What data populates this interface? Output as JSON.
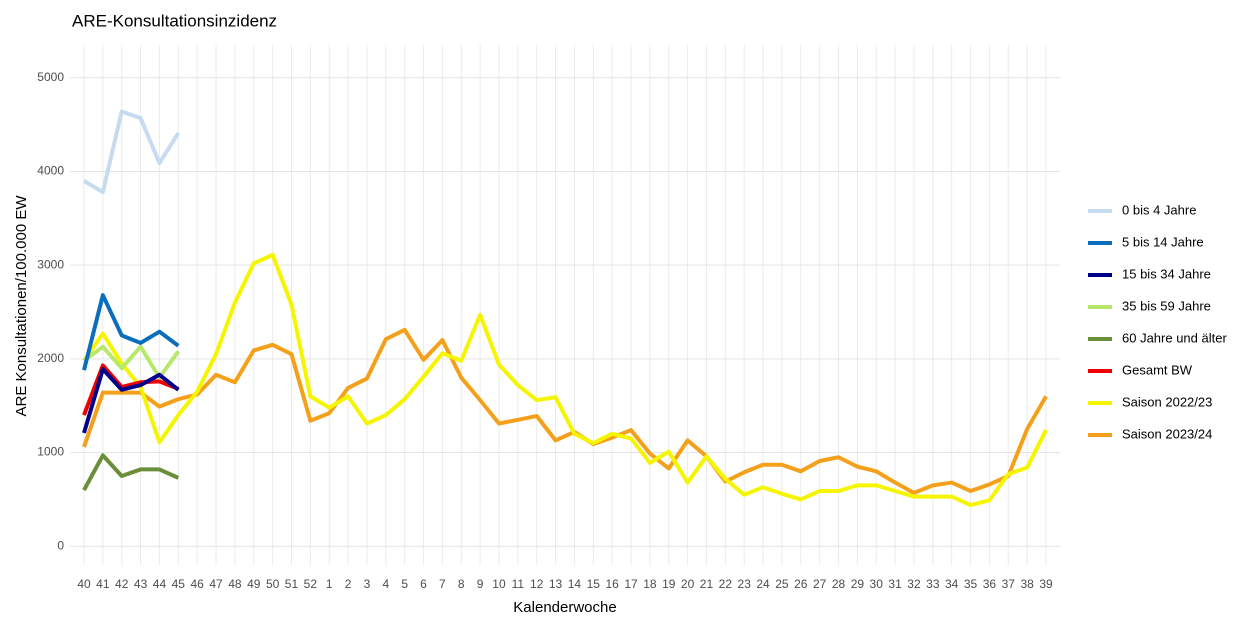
{
  "chart_data": {
    "type": "line",
    "title": "ARE-Konsultationsinzidenz",
    "x_label": "Kalenderwoche",
    "y_label": "ARE Konsultationen/100.000 EW",
    "categories": [
      "40",
      "41",
      "42",
      "43",
      "44",
      "45",
      "46",
      "47",
      "48",
      "49",
      "50",
      "51",
      "52",
      "1",
      "2",
      "3",
      "4",
      "5",
      "6",
      "7",
      "8",
      "9",
      "10",
      "11",
      "12",
      "13",
      "14",
      "15",
      "16",
      "17",
      "18",
      "19",
      "20",
      "21",
      "22",
      "23",
      "24",
      "25",
      "26",
      "27",
      "28",
      "29",
      "30",
      "31",
      "32",
      "33",
      "34",
      "35",
      "36",
      "37",
      "38",
      "39"
    ],
    "ylim": [
      -200,
      5350
    ],
    "yticks": [
      0,
      1000,
      2000,
      3000,
      4000,
      5000
    ],
    "grid": true,
    "legend": "right",
    "series": [
      {
        "name": "0 bis 4 Jahre",
        "color": "#c6dbef",
        "values": [
          3900,
          3780,
          4640,
          4570,
          4090,
          4410,
          null,
          null,
          null,
          null,
          null,
          null,
          null,
          null,
          null,
          null,
          null,
          null,
          null,
          null,
          null,
          null,
          null,
          null,
          null,
          null,
          null,
          null,
          null,
          null,
          null,
          null,
          null,
          null,
          null,
          null,
          null,
          null,
          null,
          null,
          null,
          null,
          null,
          null,
          null,
          null,
          null,
          null,
          null,
          null,
          null,
          null
        ]
      },
      {
        "name": "5 bis 14 Jahre",
        "color": "#0a6ebd",
        "values": [
          1880,
          2680,
          2250,
          2170,
          2290,
          2140,
          null,
          null,
          null,
          null,
          null,
          null,
          null,
          null,
          null,
          null,
          null,
          null,
          null,
          null,
          null,
          null,
          null,
          null,
          null,
          null,
          null,
          null,
          null,
          null,
          null,
          null,
          null,
          null,
          null,
          null,
          null,
          null,
          null,
          null,
          null,
          null,
          null,
          null,
          null,
          null,
          null,
          null,
          null,
          null,
          null,
          null
        ]
      },
      {
        "name": "15 bis 34 Jahre",
        "color": "#00008b",
        "values": [
          1210,
          1890,
          1670,
          1720,
          1830,
          1670,
          null,
          null,
          null,
          null,
          null,
          null,
          null,
          null,
          null,
          null,
          null,
          null,
          null,
          null,
          null,
          null,
          null,
          null,
          null,
          null,
          null,
          null,
          null,
          null,
          null,
          null,
          null,
          null,
          null,
          null,
          null,
          null,
          null,
          null,
          null,
          null,
          null,
          null,
          null,
          null,
          null,
          null,
          null,
          null,
          null,
          null
        ]
      },
      {
        "name": "35 bis 59 Jahre",
        "color": "#b8e86a",
        "values": [
          1980,
          2130,
          1900,
          2130,
          1800,
          2080,
          null,
          null,
          null,
          null,
          null,
          null,
          null,
          null,
          null,
          null,
          null,
          null,
          null,
          null,
          null,
          null,
          null,
          null,
          null,
          null,
          null,
          null,
          null,
          null,
          null,
          null,
          null,
          null,
          null,
          null,
          null,
          null,
          null,
          null,
          null,
          null,
          null,
          null,
          null,
          null,
          null,
          null,
          null,
          null,
          null,
          null
        ]
      },
      {
        "name": "60 Jahre und älter",
        "color": "#6b8e3a",
        "values": [
          600,
          970,
          750,
          820,
          820,
          730,
          null,
          null,
          null,
          null,
          null,
          null,
          null,
          null,
          null,
          null,
          null,
          null,
          null,
          null,
          null,
          null,
          null,
          null,
          null,
          null,
          null,
          null,
          null,
          null,
          null,
          null,
          null,
          null,
          null,
          null,
          null,
          null,
          null,
          null,
          null,
          null,
          null,
          null,
          null,
          null,
          null,
          null,
          null,
          null,
          null,
          null
        ]
      },
      {
        "name": "Gesamt BW",
        "color": "#ee0000",
        "values": [
          1400,
          1930,
          1700,
          1750,
          1760,
          1680,
          null,
          null,
          null,
          null,
          null,
          null,
          null,
          null,
          null,
          null,
          null,
          null,
          null,
          null,
          null,
          null,
          null,
          null,
          null,
          null,
          null,
          null,
          null,
          null,
          null,
          null,
          null,
          null,
          null,
          null,
          null,
          null,
          null,
          null,
          null,
          null,
          null,
          null,
          null,
          null,
          null,
          null,
          null,
          null,
          null,
          null
        ]
      },
      {
        "name": "Saison 2022/23",
        "color": "#f5f500",
        "values": [
          1980,
          2270,
          1950,
          1700,
          1110,
          1400,
          1650,
          2050,
          2600,
          3020,
          3110,
          2580,
          1600,
          1480,
          1600,
          1310,
          1400,
          1570,
          1810,
          2060,
          1980,
          2470,
          1940,
          1720,
          1560,
          1590,
          1200,
          1100,
          1200,
          1150,
          890,
          1010,
          680,
          960,
          720,
          550,
          630,
          560,
          500,
          590,
          590,
          650,
          650,
          590,
          530,
          530,
          530,
          440,
          490,
          770,
          840,
          1240
        ]
      },
      {
        "name": "Saison 2023/24",
        "color": "#f5a01a",
        "values": [
          1060,
          1640,
          1640,
          1640,
          1490,
          1570,
          1620,
          1830,
          1750,
          2090,
          2150,
          2050,
          1340,
          1420,
          1690,
          1790,
          2210,
          2310,
          1990,
          2200,
          1800,
          1560,
          1310,
          1350,
          1390,
          1130,
          1220,
          1090,
          1160,
          1240,
          990,
          830,
          1130,
          960,
          690,
          790,
          870,
          870,
          800,
          910,
          950,
          850,
          800,
          680,
          570,
          650,
          680,
          590,
          660,
          750,
          1250,
          1600
        ]
      }
    ]
  }
}
